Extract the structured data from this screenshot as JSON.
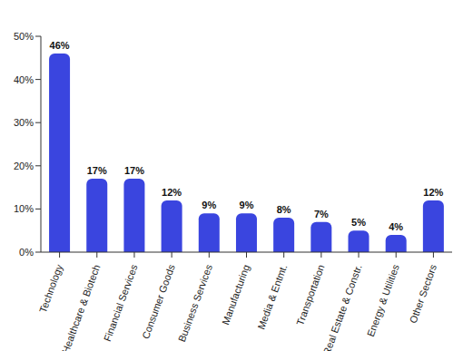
{
  "chart_data": {
    "type": "bar",
    "categories": [
      "Technology",
      "Healthcare & Biotech",
      "Financial Services",
      "Consumer Goods",
      "Business Services",
      "Manufacturing",
      "Media & Entmt.",
      "Transportation",
      "Real Estate & Constr.",
      "Energy & Utilities",
      "Other Sectors"
    ],
    "values": [
      46,
      17,
      17,
      12,
      9,
      9,
      8,
      7,
      5,
      4,
      12
    ],
    "value_labels": [
      "46%",
      "17%",
      "17%",
      "12%",
      "9%",
      "9%",
      "8%",
      "7%",
      "5%",
      "4%",
      "12%"
    ],
    "color": "#3a45df",
    "ylim": [
      0,
      50
    ],
    "yticks": [
      {
        "value": 0,
        "label": "0%"
      },
      {
        "value": 10,
        "label": "10%"
      },
      {
        "value": 20,
        "label": "20%"
      },
      {
        "value": 30,
        "label": "30%"
      },
      {
        "value": 40,
        "label": "40%"
      },
      {
        "value": 50,
        "label": "50%"
      }
    ],
    "grid": false,
    "data_labels": true
  }
}
